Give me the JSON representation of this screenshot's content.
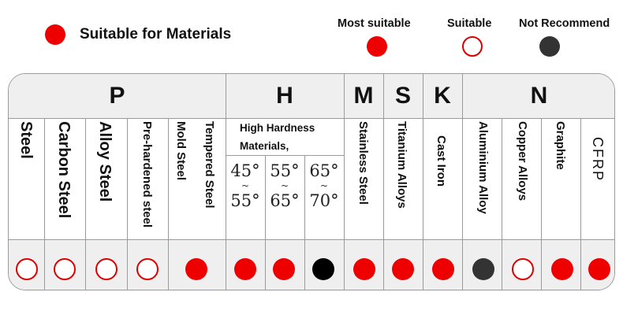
{
  "header": {
    "title": "Suitable for Materials",
    "legend": [
      {
        "label": "Most suitable",
        "type": "most"
      },
      {
        "label": "Suitable",
        "type": "suitable"
      },
      {
        "label": "Not Recommend",
        "type": "not"
      }
    ]
  },
  "colors": {
    "red": "#ee0000",
    "outline_red": "#dd0000",
    "dark": "#333333",
    "black": "#000000",
    "band": "#efefef",
    "border": "#9a9a9a"
  },
  "groups": [
    "P",
    "H",
    "M",
    "S",
    "K",
    "N"
  ],
  "columns": [
    {
      "label": "Steel",
      "rating": "suitable"
    },
    {
      "label": "Carbon Steel",
      "rating": "suitable"
    },
    {
      "label": "Alloy Steel",
      "rating": "suitable"
    },
    {
      "label": "Pre-hardened steel",
      "rating": "suitable"
    },
    {
      "label": "Mold Steel",
      "rating": "most"
    },
    {
      "label": "Tempered Steel",
      "rating": "most"
    },
    {
      "label": "45° ~ 55°",
      "rating": "most"
    },
    {
      "label": "55° ~ 65°",
      "rating": "most"
    },
    {
      "label": "65° ~ 70°",
      "rating": "not-black"
    },
    {
      "label": "Stainless Steel",
      "rating": "most"
    },
    {
      "label": "Titanium Alloys",
      "rating": "most"
    },
    {
      "label": "Cast Iron",
      "rating": "most"
    },
    {
      "label": "Aluminium Alloy",
      "rating": "not"
    },
    {
      "label": "Copper Alloys",
      "rating": "suitable"
    },
    {
      "label": "Graphite",
      "rating": "most"
    },
    {
      "label": "CFRP",
      "rating": "most"
    }
  ],
  "hardness": {
    "heading_line1": "High Hardness",
    "heading_line2": "Materials,",
    "ranges": [
      {
        "from": "45°",
        "sep": "~",
        "to": "55°"
      },
      {
        "from": "55°",
        "sep": "~",
        "to": "65°"
      },
      {
        "from": "65°",
        "sep": "~",
        "to": "70°"
      }
    ]
  }
}
